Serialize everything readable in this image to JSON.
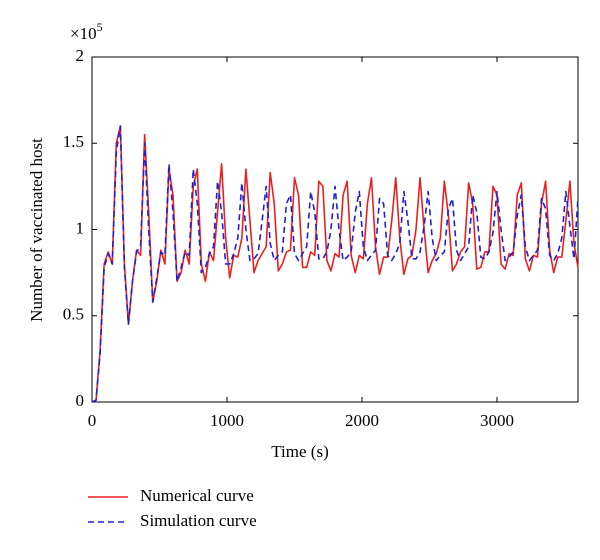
{
  "chart_data": {
    "type": "line",
    "x_label": "Time (s)",
    "y_label": "Number of vaccinated host",
    "y_axis_multiplier": "×10",
    "y_axis_multiplier_exponent": "5",
    "xlim": [
      0,
      3600
    ],
    "ylim": [
      0,
      2
    ],
    "xticks": [
      0,
      1000,
      2000,
      3000
    ],
    "yticks": [
      0,
      0.5,
      1,
      1.5,
      2
    ],
    "grid": false,
    "legend": "bottom-left",
    "x": [
      0,
      30,
      60,
      90,
      120,
      150,
      180,
      210,
      240,
      270,
      300,
      330,
      360,
      390,
      420,
      450,
      480,
      510,
      540,
      570,
      600,
      630,
      660,
      690,
      720,
      750,
      780,
      810,
      840,
      870,
      900,
      930,
      960,
      990,
      1020,
      1050,
      1080,
      1110,
      1140,
      1170,
      1200,
      1230,
      1260,
      1290,
      1320,
      1350,
      1380,
      1410,
      1440,
      1470,
      1500,
      1530,
      1560,
      1590,
      1620,
      1650,
      1680,
      1710,
      1740,
      1770,
      1800,
      1830,
      1860,
      1890,
      1920,
      1950,
      1980,
      2010,
      2040,
      2070,
      2100,
      2130,
      2160,
      2190,
      2220,
      2250,
      2280,
      2310,
      2340,
      2370,
      2400,
      2430,
      2460,
      2490,
      2520,
      2550,
      2580,
      2610,
      2640,
      2670,
      2700,
      2730,
      2760,
      2790,
      2820,
      2850,
      2880,
      2910,
      2940,
      2970,
      3000,
      3030,
      3060,
      3090,
      3120,
      3150,
      3180,
      3210,
      3240,
      3270,
      3300,
      3330,
      3360,
      3390,
      3420,
      3450,
      3480,
      3510,
      3540,
      3570,
      3600
    ],
    "series": [
      {
        "name": "Numerical curve",
        "color": "#e8211f",
        "dash": "solid",
        "values": [
          0,
          0.01,
          0.3,
          0.8,
          0.87,
          0.8,
          1.5,
          1.6,
          0.8,
          0.45,
          0.7,
          0.88,
          0.85,
          1.55,
          1.1,
          0.58,
          0.7,
          0.88,
          0.8,
          1.35,
          1.2,
          0.7,
          0.75,
          0.88,
          0.8,
          1.25,
          1.35,
          0.8,
          0.7,
          0.87,
          0.82,
          1.1,
          1.38,
          0.95,
          0.72,
          0.85,
          0.84,
          0.95,
          1.35,
          1.05,
          0.75,
          0.82,
          0.86,
          0.9,
          1.33,
          1.15,
          0.76,
          0.8,
          0.87,
          0.88,
          1.3,
          1.2,
          0.78,
          0.78,
          0.87,
          0.85,
          1.28,
          1.25,
          0.82,
          0.76,
          0.86,
          0.84,
          1.2,
          1.28,
          0.85,
          0.75,
          0.85,
          0.83,
          1.15,
          1.3,
          0.9,
          0.74,
          0.84,
          0.84,
          1.05,
          1.3,
          0.95,
          0.74,
          0.83,
          0.85,
          1.0,
          1.3,
          1.0,
          0.75,
          0.82,
          0.86,
          0.95,
          1.28,
          1.08,
          0.76,
          0.8,
          0.87,
          0.9,
          1.27,
          1.15,
          0.77,
          0.78,
          0.87,
          0.87,
          1.25,
          1.2,
          0.8,
          0.77,
          0.86,
          0.85,
          1.2,
          1.27,
          0.83,
          0.76,
          0.85,
          0.84,
          1.15,
          1.28,
          0.88,
          0.75,
          0.84,
          0.84,
          1.05,
          1.28,
          0.92,
          0.78
        ]
      },
      {
        "name": "Simulation curve",
        "color": "#1f1fd6",
        "dash": "dashed",
        "values": [
          0,
          0.01,
          0.28,
          0.78,
          0.86,
          0.8,
          1.45,
          1.6,
          0.78,
          0.45,
          0.7,
          0.87,
          0.9,
          1.5,
          1.0,
          0.58,
          0.72,
          0.87,
          0.85,
          1.38,
          1.1,
          0.7,
          0.78,
          0.87,
          0.85,
          1.35,
          1.15,
          0.75,
          0.78,
          0.86,
          0.9,
          1.28,
          1.1,
          0.8,
          0.8,
          0.86,
          0.95,
          1.27,
          1.0,
          0.82,
          0.83,
          0.86,
          1.05,
          1.25,
          0.92,
          0.82,
          0.85,
          0.87,
          1.15,
          1.2,
          0.86,
          0.82,
          0.86,
          0.9,
          1.22,
          1.1,
          0.83,
          0.83,
          0.87,
          1.0,
          1.25,
          1.0,
          0.82,
          0.84,
          0.87,
          1.1,
          1.22,
          0.9,
          0.82,
          0.85,
          0.88,
          1.18,
          1.15,
          0.85,
          0.82,
          0.86,
          0.92,
          1.22,
          1.05,
          0.83,
          0.83,
          0.87,
          1.02,
          1.22,
          0.95,
          0.82,
          0.85,
          0.87,
          1.12,
          1.18,
          0.88,
          0.82,
          0.86,
          0.9,
          1.2,
          1.1,
          0.84,
          0.83,
          0.87,
          0.98,
          1.22,
          1.0,
          0.82,
          0.84,
          0.87,
          1.08,
          1.2,
          0.9,
          0.82,
          0.85,
          0.88,
          1.18,
          1.12,
          0.85,
          0.82,
          0.86,
          0.95,
          1.22,
          1.02,
          0.83,
          1.18
        ]
      }
    ]
  }
}
